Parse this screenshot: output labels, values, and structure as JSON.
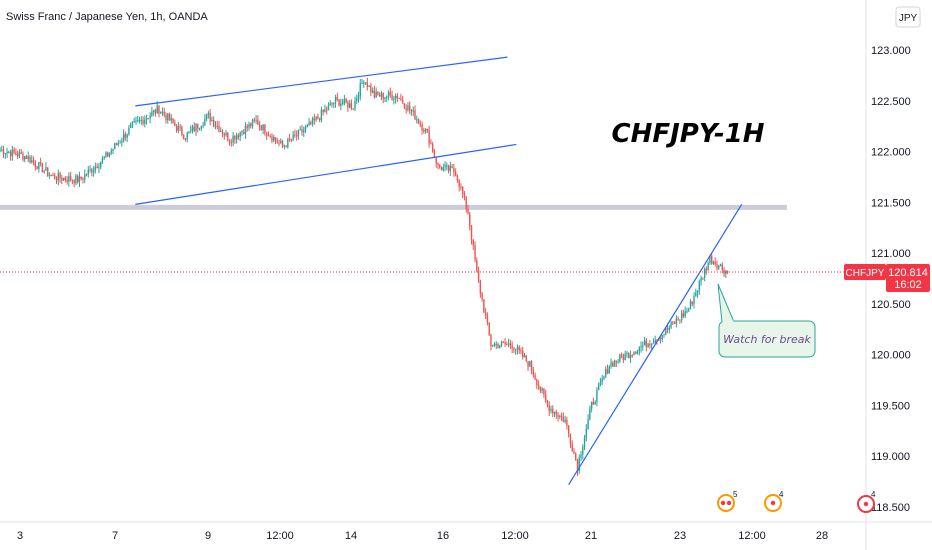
{
  "header": {
    "symbol_title": "Swiss Franc / Japanese Yen, 1h, OANDA",
    "currency_button": "JPY"
  },
  "chart_data": {
    "type": "candlestick",
    "symbol": "CHFJPY",
    "annotation_title": "CHFJPY-1H",
    "callout_text": "Watch for break",
    "price_axis": {
      "ticks": [
        "123.000",
        "122.500",
        "122.000",
        "121.500",
        "121.000",
        "120.500",
        "120.000",
        "119.500",
        "119.000",
        "118.500"
      ],
      "ylim": [
        118.5,
        123.2
      ]
    },
    "time_axis": {
      "ticks": [
        "3",
        "7",
        "9",
        "12:00",
        "14",
        "16",
        "12:00",
        "21",
        "23",
        "12:00",
        "28"
      ]
    },
    "last_price": {
      "label": "CHFJPY",
      "value": "120.814",
      "countdown": "16:02",
      "price": 120.814
    },
    "resistance_level": 121.45,
    "anchors": [
      {
        "t": 0,
        "p": 122.02
      },
      {
        "t": 15,
        "p": 121.95
      },
      {
        "t": 30,
        "p": 121.75
      },
      {
        "t": 45,
        "p": 121.72
      },
      {
        "t": 60,
        "p": 121.95
      },
      {
        "t": 75,
        "p": 122.25
      },
      {
        "t": 90,
        "p": 122.42
      },
      {
        "t": 105,
        "p": 122.15
      },
      {
        "t": 118,
        "p": 122.35
      },
      {
        "t": 130,
        "p": 122.12
      },
      {
        "t": 145,
        "p": 122.3
      },
      {
        "t": 160,
        "p": 122.05
      },
      {
        "t": 175,
        "p": 122.25
      },
      {
        "t": 190,
        "p": 122.5
      },
      {
        "t": 200,
        "p": 122.45
      },
      {
        "t": 206,
        "p": 122.72
      },
      {
        "t": 212,
        "p": 122.55
      },
      {
        "t": 225,
        "p": 122.55
      },
      {
        "t": 235,
        "p": 122.35
      },
      {
        "t": 242,
        "p": 122.18
      },
      {
        "t": 248,
        "p": 121.85
      },
      {
        "t": 258,
        "p": 121.8
      },
      {
        "t": 265,
        "p": 121.4
      },
      {
        "t": 270,
        "p": 120.8
      },
      {
        "t": 278,
        "p": 120.1
      },
      {
        "t": 290,
        "p": 120.1
      },
      {
        "t": 300,
        "p": 119.9
      },
      {
        "t": 310,
        "p": 119.5
      },
      {
        "t": 320,
        "p": 119.35
      },
      {
        "t": 327,
        "p": 118.9
      },
      {
        "t": 335,
        "p": 119.5
      },
      {
        "t": 345,
        "p": 119.9
      },
      {
        "t": 360,
        "p": 120.05
      },
      {
        "t": 375,
        "p": 120.2
      },
      {
        "t": 390,
        "p": 120.45
      },
      {
        "t": 402,
        "p": 120.95
      },
      {
        "t": 412,
        "p": 120.81
      }
    ],
    "channel_upper": [
      {
        "t": 50,
        "p": 122.45
      },
      {
        "t": 280,
        "p": 122.93
      }
    ],
    "channel_lower": [
      {
        "t": 50,
        "p": 121.48
      },
      {
        "t": 285,
        "p": 122.07
      }
    ],
    "trendline": [
      {
        "t": 322,
        "p": 118.72
      },
      {
        "t": 420,
        "p": 121.48
      }
    ],
    "event_badges": [
      {
        "label": "5"
      },
      {
        "label": "4"
      },
      {
        "label": "4"
      }
    ],
    "colors": {
      "up": "#26a69a",
      "down": "#ef5350",
      "trendline": "#2962ff",
      "level": "#c5c8d6",
      "callout_bg": "#e8f5e9",
      "callout_border": "#26a69a",
      "callout_text": "#6a4c93",
      "last_price_bg": "#f23645",
      "event": "#ff9800",
      "event_alt": "#f23645"
    }
  }
}
